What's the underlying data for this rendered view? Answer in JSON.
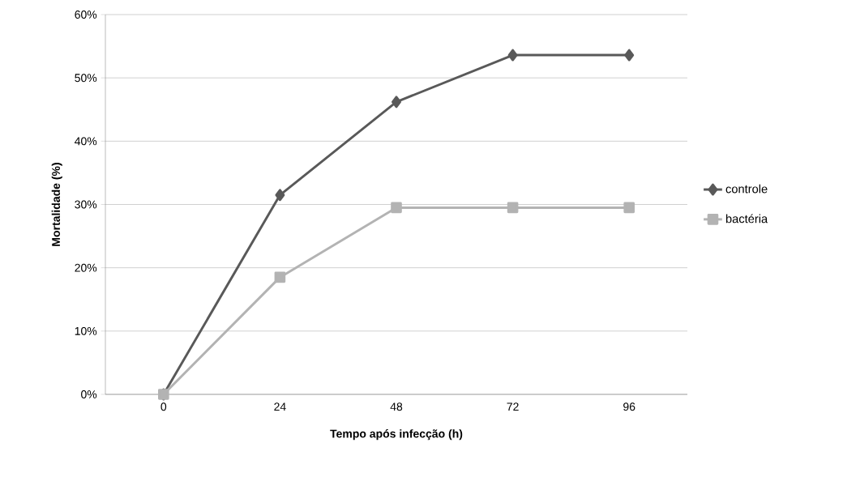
{
  "chart_data": {
    "type": "line",
    "xlabel": "Tempo após infecção (h)",
    "ylabel": "Mortalidade (%)",
    "categories": [
      "0",
      "24",
      "48",
      "72",
      "96"
    ],
    "series": [
      {
        "name": "controle",
        "color": "#595959",
        "marker": "diamond",
        "values": [
          0,
          31.5,
          46.2,
          53.6,
          53.6
        ]
      },
      {
        "name": "bactéria",
        "color": "#b3b3b3",
        "marker": "square",
        "values": [
          0,
          18.5,
          29.5,
          29.5,
          29.5
        ]
      }
    ],
    "ylim": [
      0,
      60
    ],
    "yticks": [
      {
        "value": 0,
        "label": "0%"
      },
      {
        "value": 10,
        "label": "10%"
      },
      {
        "value": 20,
        "label": "20%"
      },
      {
        "value": 30,
        "label": "30%"
      },
      {
        "value": 40,
        "label": "40%"
      },
      {
        "value": 50,
        "label": "50%"
      },
      {
        "value": 60,
        "label": "60%"
      }
    ],
    "grid": "y",
    "legend": "right"
  }
}
